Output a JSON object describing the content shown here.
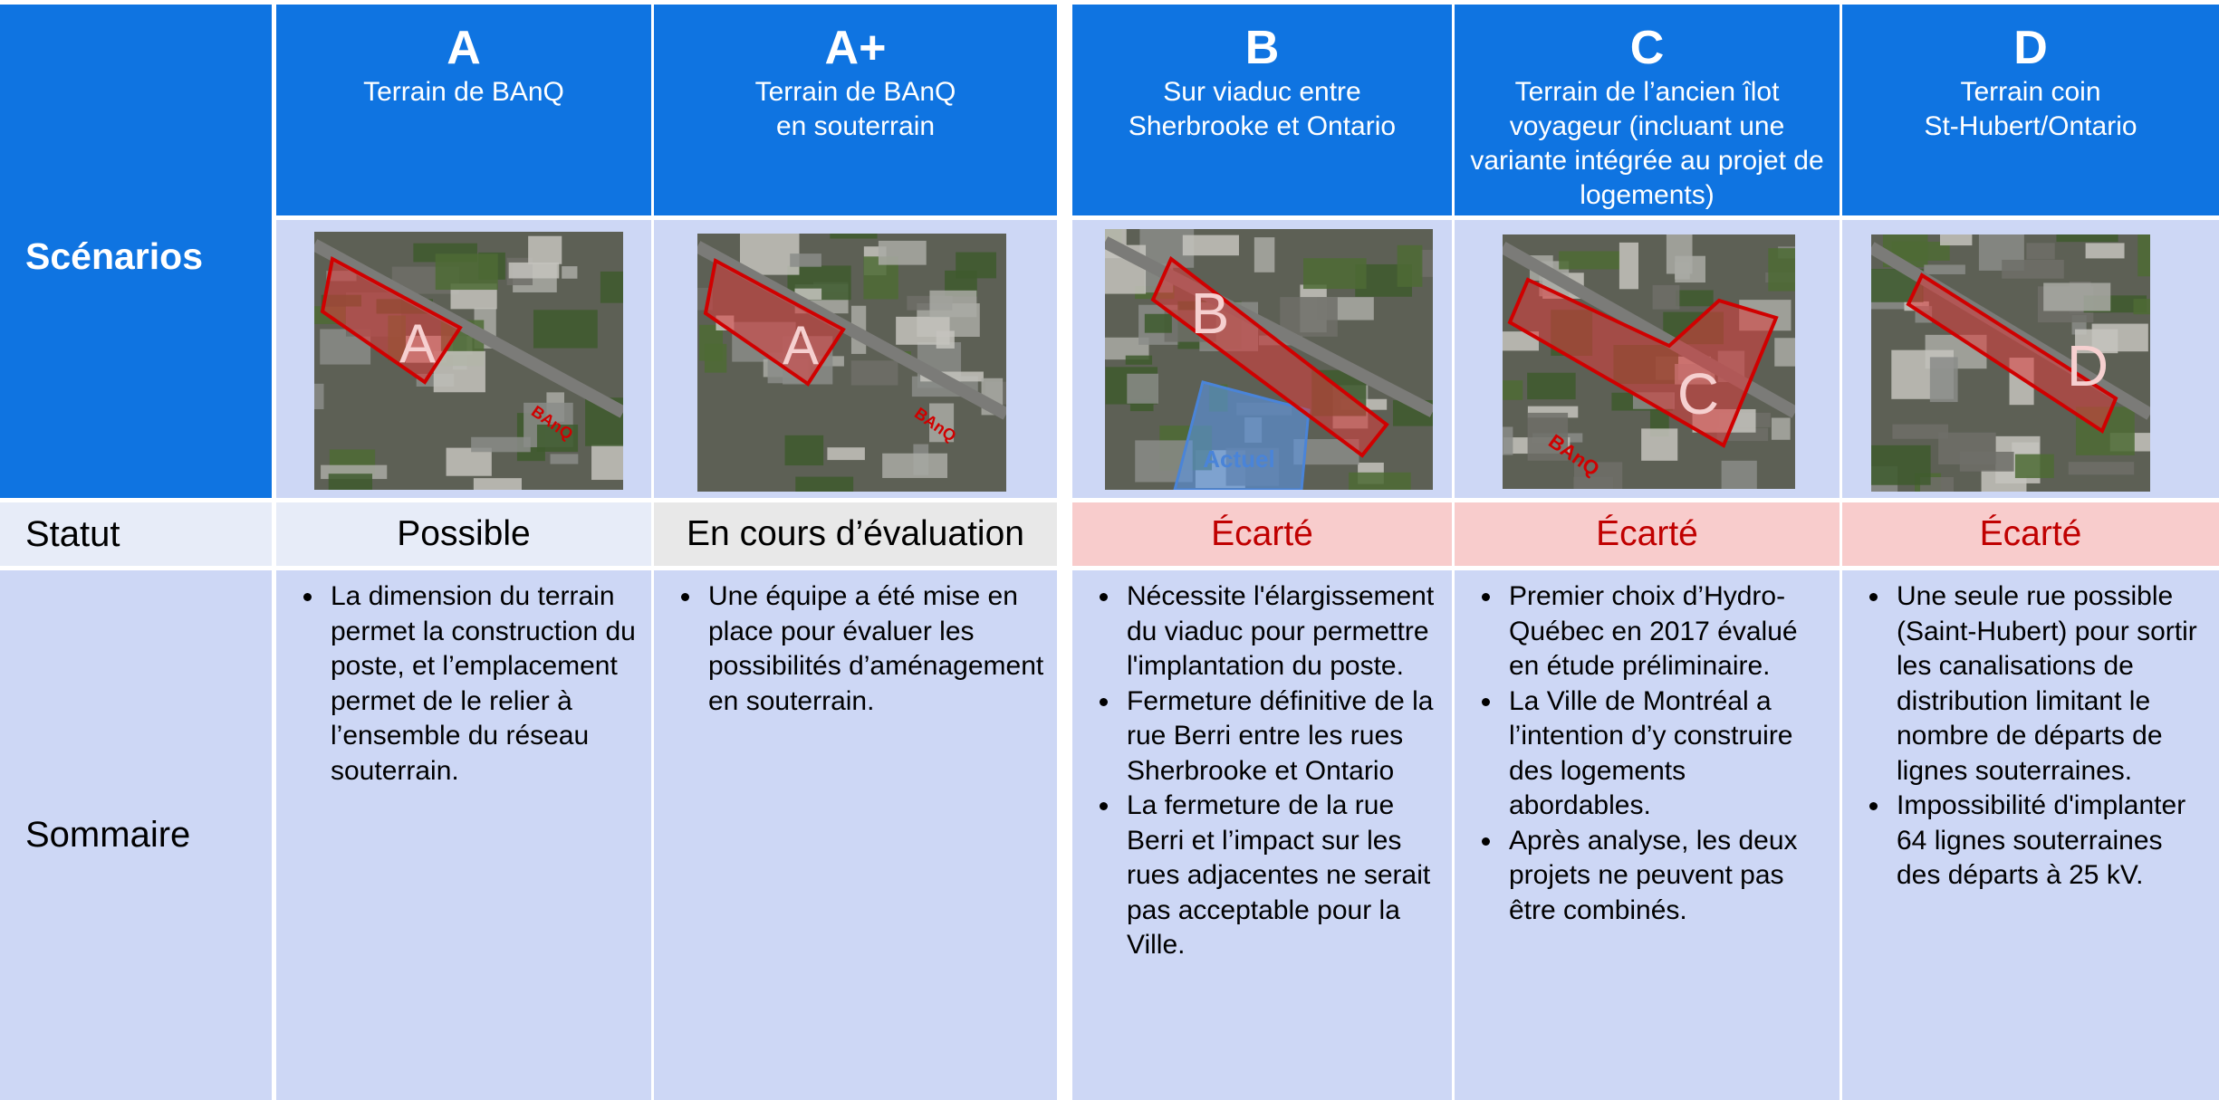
{
  "row_headers": {
    "scenarios": "Scénarios",
    "statut": "Statut",
    "sommaire": "Sommaire"
  },
  "columns": [
    {
      "letter": "A",
      "title": "Terrain de BAnQ",
      "image_labels": [
        "A",
        "BAnQ"
      ],
      "status": "Possible",
      "summary": [
        "La dimension du terrain permet la construction du poste, et l’emplacement permet de le relier à l’ensemble du réseau souterrain."
      ]
    },
    {
      "letter": "A+",
      "title": "Terrain de BAnQ\nen souterrain",
      "image_labels": [
        "A",
        "BAnQ"
      ],
      "status": "En cours d’évaluation",
      "summary": [
        "Une équipe a été mise en place pour évaluer les possibilités d’aménagement en souterrain."
      ]
    },
    {
      "letter": "B",
      "title": "Sur viaduc entre\nSherbrooke et Ontario",
      "image_labels": [
        "B",
        "Actuel"
      ],
      "status": "Écarté",
      "summary": [
        "Nécessite l'élargissement du viaduc pour permettre l'implantation du poste.",
        "Fermeture définitive de la rue Berri entre les rues Sherbrooke et Ontario",
        "La fermeture de la rue Berri et l’impact sur les rues adjacentes ne serait pas acceptable pour la Ville."
      ]
    },
    {
      "letter": "C",
      "title": "Terrain de l’ancien îlot voyageur (incluant une variante intégrée au projet de logements)",
      "image_labels": [
        "C",
        "BAnQ"
      ],
      "status": "Écarté",
      "summary": [
        "Premier choix d’Hydro-Québec en 2017 évalué en étude préliminaire.",
        "La Ville de Montréal a l’intention d’y construire des logements abordables.",
        "Après analyse, les deux projets ne peuvent pas être combinés."
      ]
    },
    {
      "letter": "D",
      "title": "Terrain coin\nSt-Hubert/Ontario",
      "image_labels": [
        "D"
      ],
      "status": "Écarté",
      "summary": [
        "Une seule rue possible (Saint-Hubert) pour sortir les canalisations de distribution limitant le nombre de départs de lignes souterraines.",
        "Impossibilité d'implanter 64 lignes souterraines des départs à 25 kV."
      ]
    }
  ]
}
